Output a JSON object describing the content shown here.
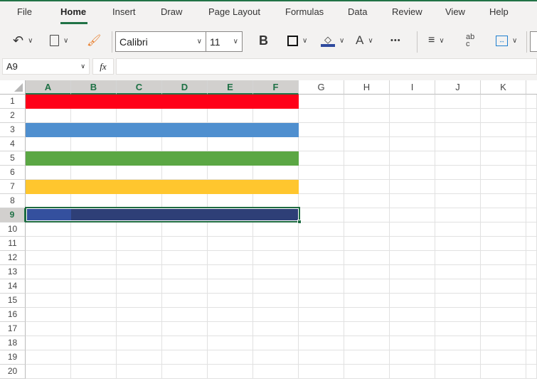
{
  "tabs": [
    {
      "label": "File"
    },
    {
      "label": "Home",
      "active": true
    },
    {
      "label": "Insert"
    },
    {
      "label": "Draw"
    },
    {
      "label": "Page Layout"
    },
    {
      "label": "Formulas"
    },
    {
      "label": "Data"
    },
    {
      "label": "Review"
    },
    {
      "label": "View"
    },
    {
      "label": "Help"
    }
  ],
  "toolbar": {
    "font_name": "Calibri",
    "font_size": "11",
    "bold_label": "B",
    "more_label": "•••",
    "font_color_label": "A",
    "wrap_label": "ab c"
  },
  "formula_bar": {
    "name_box": "A9",
    "fx_label": "fx",
    "formula": ""
  },
  "columns": [
    "A",
    "B",
    "C",
    "D",
    "E",
    "F",
    "G",
    "H",
    "I",
    "J",
    "K"
  ],
  "rows": [
    "1",
    "2",
    "3",
    "4",
    "5",
    "6",
    "7",
    "8",
    "9",
    "10",
    "11",
    "12",
    "13",
    "14",
    "15",
    "16",
    "17",
    "18",
    "19",
    "20"
  ],
  "selected_cell": "A9",
  "filled_rows": [
    {
      "row": 1,
      "color": "#ff0018"
    },
    {
      "row": 3,
      "color": "#4f8fcf"
    },
    {
      "row": 5,
      "color": "#5ba744"
    },
    {
      "row": 7,
      "color": "#ffc62e"
    },
    {
      "row": 9,
      "color": "#2e3f77"
    }
  ],
  "colors": {
    "accent": "#217346",
    "fill_color_swatch": "#2e4a9e",
    "selected_cell_fill": "#34509e"
  }
}
